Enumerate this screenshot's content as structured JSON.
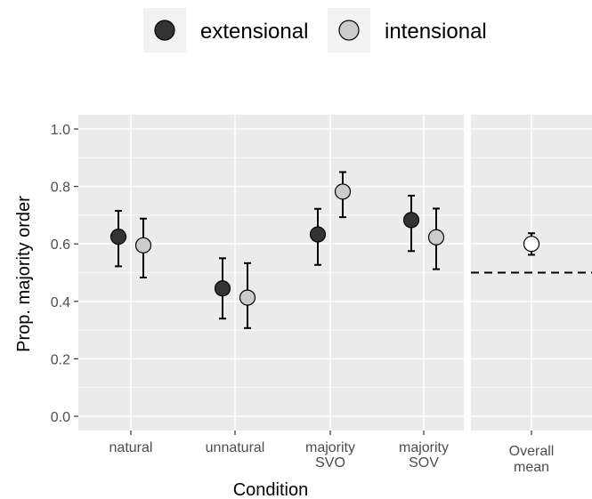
{
  "chart_data": {
    "type": "scatter",
    "title": "",
    "xlabel": "Condition",
    "ylabel": "Prop. majority order",
    "ylim": [
      -0.05,
      1.05
    ],
    "yticks": [
      "0.0",
      "0.2",
      "0.4",
      "0.6",
      "0.8",
      "1.0"
    ],
    "categories": [
      [
        "natural"
      ],
      [
        "unnatural"
      ],
      [
        "majority",
        "SVO"
      ],
      [
        "majority",
        "SOV"
      ]
    ],
    "legend_position": "top",
    "grid": true,
    "series": [
      {
        "name": "extensional",
        "color": "#333333",
        "values": [
          0.625,
          0.445,
          0.633,
          0.683
        ],
        "lower": [
          0.522,
          0.34,
          0.527,
          0.575
        ],
        "upper": [
          0.715,
          0.55,
          0.722,
          0.768
        ]
      },
      {
        "name": "intensional",
        "color": "#cccccc",
        "values": [
          0.595,
          0.413,
          0.782,
          0.623
        ],
        "lower": [
          0.483,
          0.307,
          0.693,
          0.512
        ],
        "upper": [
          0.688,
          0.533,
          0.85,
          0.723
        ]
      }
    ],
    "summary_panel": {
      "category": [
        "Overall",
        "mean"
      ],
      "value": 0.6,
      "lower": 0.562,
      "upper": 0.637,
      "color": "#ffffff",
      "reference_line": 0.5
    }
  }
}
